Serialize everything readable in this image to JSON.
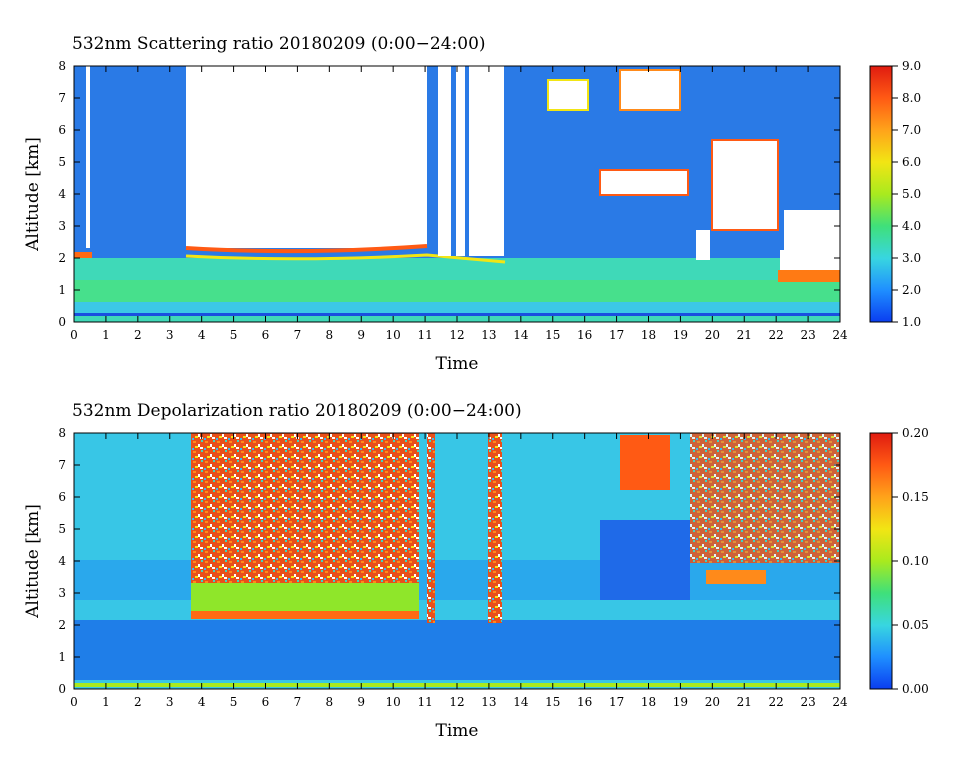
{
  "chart_data": [
    {
      "type": "heatmap",
      "title": "532nm Scattering ratio  20180209 (0:00−24:00)",
      "xlabel": "Time",
      "ylabel": "Altitude [km]",
      "xlim": [
        0,
        24
      ],
      "ylim": [
        0,
        8
      ],
      "x_ticks": [
        "0",
        "1",
        "2",
        "3",
        "4",
        "5",
        "6",
        "7",
        "8",
        "9",
        "10",
        "11",
        "12",
        "13",
        "14",
        "15",
        "16",
        "17",
        "18",
        "19",
        "20",
        "21",
        "22",
        "23",
        "24"
      ],
      "y_ticks": [
        "0",
        "1",
        "2",
        "3",
        "4",
        "5",
        "6",
        "7",
        "8"
      ],
      "colorbar": {
        "range": [
          1.0,
          9.0
        ],
        "ticks": [
          "1.0",
          "2.0",
          "3.0",
          "4.0",
          "5.0",
          "6.0",
          "7.0",
          "8.0",
          "9.0"
        ]
      },
      "cloud_segments": [
        {
          "start": 3.5,
          "end": 11.0,
          "base_km": 2.3,
          "note": "white (saturated) region above base"
        },
        {
          "start": 11.4,
          "end": 13.5,
          "base_km": 2.3
        },
        {
          "start": 16.5,
          "end": 19.5,
          "base_km": 4.4,
          "top_km": 5.5
        },
        {
          "start": 19.6,
          "end": 22.0,
          "base_km": 2.6,
          "top_km": 6.5
        }
      ]
    },
    {
      "type": "heatmap",
      "title": "532nm Depolarization ratio  20180209 (0:00−24:00)",
      "xlabel": "Time",
      "ylabel": "Altitude [km]",
      "xlim": [
        0,
        24
      ],
      "ylim": [
        0,
        8
      ],
      "x_ticks": [
        "0",
        "1",
        "2",
        "3",
        "4",
        "5",
        "6",
        "7",
        "8",
        "9",
        "10",
        "11",
        "12",
        "13",
        "14",
        "15",
        "16",
        "17",
        "18",
        "19",
        "20",
        "21",
        "22",
        "23",
        "24"
      ],
      "y_ticks": [
        "0",
        "1",
        "2",
        "3",
        "4",
        "5",
        "6",
        "7",
        "8"
      ],
      "colorbar": {
        "range": [
          0.0,
          0.2
        ],
        "ticks": [
          "0.00",
          "0.05",
          "0.10",
          "0.15",
          "0.20"
        ]
      }
    }
  ],
  "colors": {
    "colormap": [
      "#0a3df0",
      "#1f8fff",
      "#38d6e0",
      "#3fe07a",
      "#a9ea1e",
      "#f2e514",
      "#ffa31a",
      "#ff5a14",
      "#e01b10"
    ],
    "background": "#ffffff",
    "saturated": "#ffffff"
  }
}
